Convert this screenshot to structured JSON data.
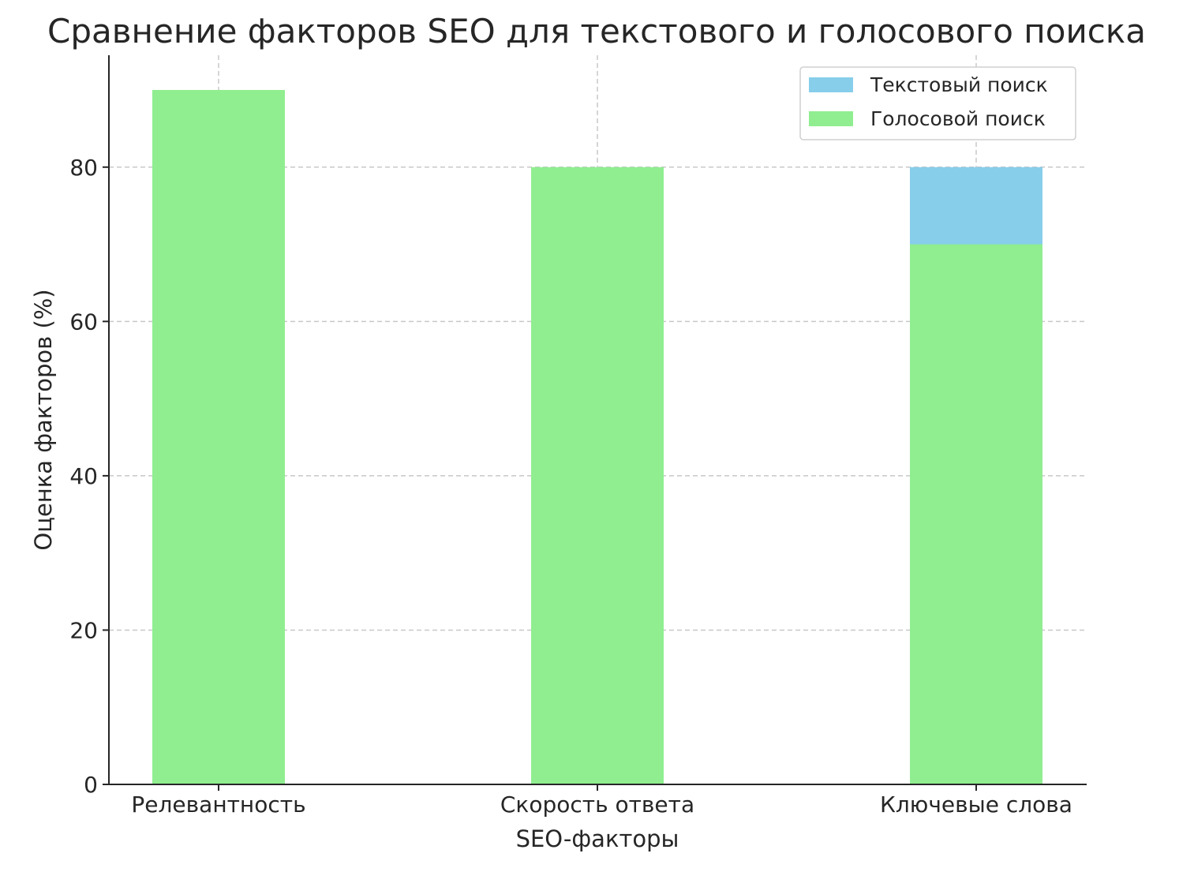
{
  "chart_data": {
    "type": "bar",
    "title": "Сравнение факторов SEO для текстового и голосового поиска",
    "xlabel": "SEO-факторы",
    "ylabel": "Оценка факторов (%)",
    "categories": [
      "Релевантность",
      "Скорость ответа",
      "Ключевые слова"
    ],
    "series": [
      {
        "name": "Текстовый поиск",
        "values": [
          null,
          null,
          80
        ],
        "color": "#87CEEB"
      },
      {
        "name": "Голосовой поиск",
        "values": [
          90,
          80,
          70
        ],
        "color": "#90EE90"
      }
    ],
    "overlapping_bars": true,
    "ylim": [
      0,
      94.5
    ],
    "yticks": [
      0,
      20,
      40,
      60,
      80
    ],
    "grid": true,
    "legend_position": "top-right"
  }
}
